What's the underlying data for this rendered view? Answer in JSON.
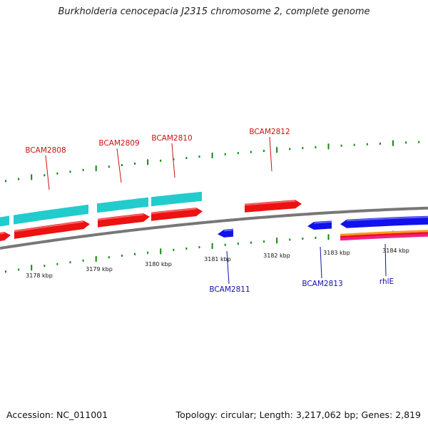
{
  "title": "Burkholderia cenocepacia J2315 chromosome 2, complete genome",
  "footer": {
    "accession": "Accession: NC_011001",
    "summary": "Topology: circular; Length: 3,217,062 bp; Genes: 2,819"
  },
  "colors": {
    "forward_gene": "#ee1111",
    "reverse_gene": "#1111ee",
    "cds": "#22cccc",
    "backbone": "#777777",
    "tick": "#118811",
    "forward_label": "#cc1111",
    "reverse_label": "#1111aa",
    "feature_band": [
      "#ee2288",
      "#ff9922",
      "#ee1111"
    ]
  },
  "scale_labels": [
    "3178 kbp",
    "3179 kbp",
    "3180 kbp",
    "3181 kbp",
    "3182 kbp",
    "3183 kbp",
    "3184 kbp"
  ],
  "gene_labels": {
    "forward": [
      "BCAM2808",
      "BCAM2809",
      "BCAM2810",
      "BCAM2812"
    ],
    "reverse": [
      "BCAM2811",
      "BCAM2813",
      "rhlE"
    ]
  }
}
